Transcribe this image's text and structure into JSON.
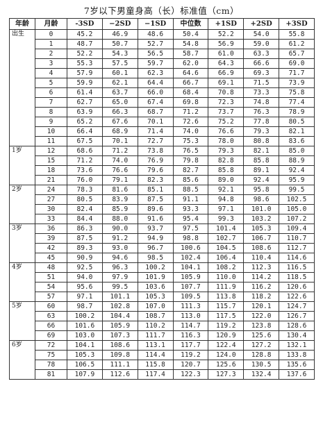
{
  "title": "7岁以下男童身高（长）标准值（cm）",
  "columns": [
    "年龄",
    "月龄",
    "-3SD",
    "−2SD",
    "−1SD",
    "中位数",
    "+1SD",
    "+2SD",
    "+3SD"
  ],
  "rows": [
    {
      "age": "出生",
      "month": "0",
      "values": [
        "45.2",
        "46.9",
        "48.6",
        "50.4",
        "52.2",
        "54.0",
        "55.8"
      ]
    },
    {
      "age": "",
      "month": "1",
      "values": [
        "48.7",
        "50.7",
        "52.7",
        "54.8",
        "56.9",
        "59.0",
        "61.2"
      ]
    },
    {
      "age": "",
      "month": "2",
      "values": [
        "52.2",
        "54.3",
        "56.5",
        "58.7",
        "61.0",
        "63.3",
        "65.7"
      ]
    },
    {
      "age": "",
      "month": "3",
      "values": [
        "55.3",
        "57.5",
        "59.7",
        "62.0",
        "64.3",
        "66.6",
        "69.0"
      ]
    },
    {
      "age": "",
      "month": "4",
      "values": [
        "57.9",
        "60.1",
        "62.3",
        "64.6",
        "66.9",
        "69.3",
        "71.7"
      ]
    },
    {
      "age": "",
      "month": "5",
      "values": [
        "59.9",
        "62.1",
        "64.4",
        "66.7",
        "69.1",
        "71.5",
        "73.9"
      ]
    },
    {
      "age": "",
      "month": "6",
      "values": [
        "61.4",
        "63.7",
        "66.0",
        "68.4",
        "70.8",
        "73.3",
        "75.8"
      ]
    },
    {
      "age": "",
      "month": "7",
      "values": [
        "62.7",
        "65.0",
        "67.4",
        "69.8",
        "72.3",
        "74.8",
        "77.4"
      ]
    },
    {
      "age": "",
      "month": "8",
      "values": [
        "63.9",
        "66.3",
        "68.7",
        "71.2",
        "73.7",
        "76.3",
        "78.9"
      ]
    },
    {
      "age": "",
      "month": "9",
      "values": [
        "65.2",
        "67.6",
        "70.1",
        "72.6",
        "75.2",
        "77.8",
        "80.5"
      ]
    },
    {
      "age": "",
      "month": "10",
      "values": [
        "66.4",
        "68.9",
        "71.4",
        "74.0",
        "76.6",
        "79.3",
        "82.1"
      ]
    },
    {
      "age": "",
      "month": "11",
      "values": [
        "67.5",
        "70.1",
        "72.7",
        "75.3",
        "78.0",
        "80.8",
        "83.6"
      ]
    },
    {
      "age": "1岁",
      "month": "12",
      "values": [
        "68.6",
        "71.2",
        "73.8",
        "76.5",
        "79.3",
        "82.1",
        "85.0"
      ]
    },
    {
      "age": "",
      "month": "15",
      "values": [
        "71.2",
        "74.0",
        "76.9",
        "79.8",
        "82.8",
        "85.8",
        "88.9"
      ]
    },
    {
      "age": "",
      "month": "18",
      "values": [
        "73.6",
        "76.6",
        "79.6",
        "82.7",
        "85.8",
        "89.1",
        "92.4"
      ]
    },
    {
      "age": "",
      "month": "21",
      "values": [
        "76.0",
        "79.1",
        "82.3",
        "85.6",
        "89.0",
        "92.4",
        "95.9"
      ]
    },
    {
      "age": "2岁",
      "month": "24",
      "values": [
        "78.3",
        "81.6",
        "85.1",
        "88.5",
        "92.1",
        "95.8",
        "99.5"
      ]
    },
    {
      "age": "",
      "month": "27",
      "values": [
        "80.5",
        "83.9",
        "87.5",
        "91.1",
        "94.8",
        "98.6",
        "102.5"
      ]
    },
    {
      "age": "",
      "month": "30",
      "values": [
        "82.4",
        "85.9",
        "89.6",
        "93.3",
        "97.1",
        "101.0",
        "105.0"
      ]
    },
    {
      "age": "",
      "month": "33",
      "values": [
        "84.4",
        "88.0",
        "91.6",
        "95.4",
        "99.3",
        "103.2",
        "107.2"
      ]
    },
    {
      "age": "3岁",
      "month": "36",
      "values": [
        "86.3",
        "90.0",
        "93.7",
        "97.5",
        "101.4",
        "105.3",
        "109.4"
      ]
    },
    {
      "age": "",
      "month": "39",
      "values": [
        "87.5",
        "91.2",
        "94.9",
        "98.8",
        "102.7",
        "106.7",
        "110.7"
      ]
    },
    {
      "age": "",
      "month": "42",
      "values": [
        "89.3",
        "93.0",
        "96.7",
        "100.6",
        "104.5",
        "108.6",
        "112.7"
      ]
    },
    {
      "age": "",
      "month": "45",
      "values": [
        "90.9",
        "94.6",
        "98.5",
        "102.4",
        "106.4",
        "110.4",
        "114.6"
      ]
    },
    {
      "age": "4岁",
      "month": "48",
      "values": [
        "92.5",
        "96.3",
        "100.2",
        "104.1",
        "108.2",
        "112.3",
        "116.5"
      ]
    },
    {
      "age": "",
      "month": "51",
      "values": [
        "94.0",
        "97.9",
        "101.9",
        "105.9",
        "110.0",
        "114.2",
        "118.5"
      ]
    },
    {
      "age": "",
      "month": "54",
      "values": [
        "95.6",
        "99.5",
        "103.6",
        "107.7",
        "111.9",
        "116.2",
        "120.6"
      ]
    },
    {
      "age": "",
      "month": "57",
      "values": [
        "97.1",
        "101.1",
        "105.3",
        "109.5",
        "113.8",
        "118.2",
        "122.6"
      ]
    },
    {
      "age": "5岁",
      "month": "60",
      "values": [
        "98.7",
        "102.8",
        "107.0",
        "111.3",
        "115.7",
        "120.1",
        "124.7"
      ]
    },
    {
      "age": "",
      "month": "63",
      "values": [
        "100.2",
        "104.4",
        "108.7",
        "113.0",
        "117.5",
        "122.0",
        "126.7"
      ]
    },
    {
      "age": "",
      "month": "66",
      "values": [
        "101.6",
        "105.9",
        "110.2",
        "114.7",
        "119.2",
        "123.8",
        "128.6"
      ]
    },
    {
      "age": "",
      "month": "69",
      "values": [
        "103.0",
        "107.3",
        "111.7",
        "116.3",
        "120.9",
        "125.6",
        "130.4"
      ]
    },
    {
      "age": "6岁",
      "month": "72",
      "values": [
        "104.1",
        "108.6",
        "113.1",
        "117.7",
        "122.4",
        "127.2",
        "132.1"
      ]
    },
    {
      "age": "",
      "month": "75",
      "values": [
        "105.3",
        "109.8",
        "114.4",
        "119.2",
        "124.0",
        "128.8",
        "133.8"
      ]
    },
    {
      "age": "",
      "month": "78",
      "values": [
        "106.5",
        "111.1",
        "115.8",
        "120.7",
        "125.6",
        "130.5",
        "135.6"
      ]
    },
    {
      "age": "",
      "month": "81",
      "values": [
        "107.9",
        "112.6",
        "117.4",
        "122.3",
        "127.3",
        "132.4",
        "137.6"
      ]
    }
  ]
}
